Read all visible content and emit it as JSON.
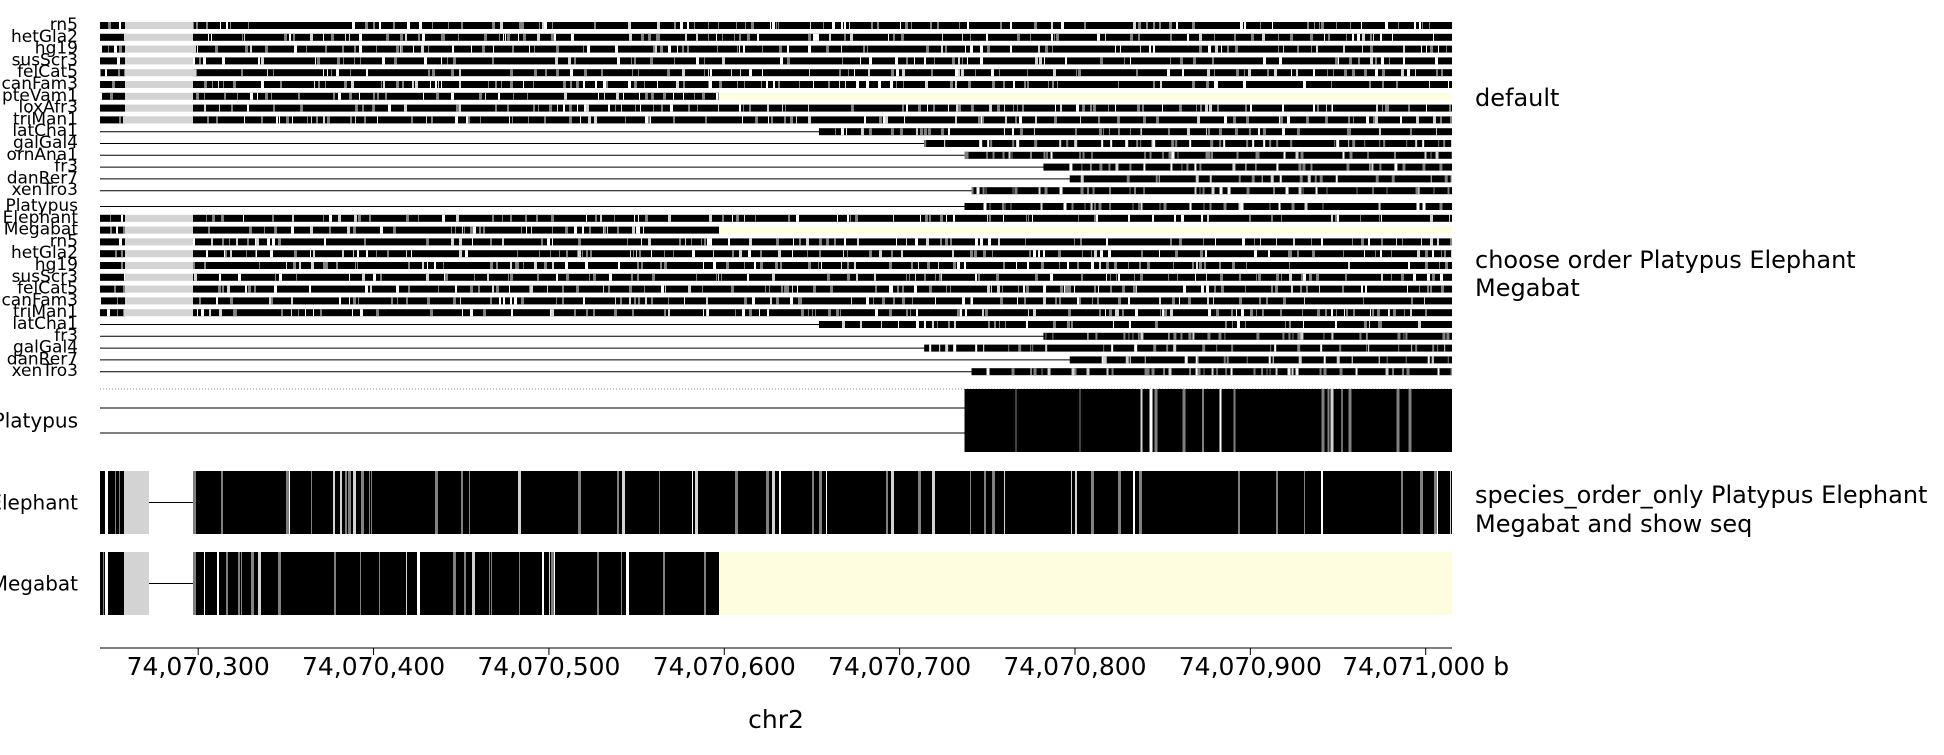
{
  "chart_data": {
    "type": "heatmap",
    "description_free": true,
    "x_range": [
      74070244,
      74071015
    ],
    "x_ticks": [
      74070300,
      74070400,
      74070500,
      74070600,
      74070700,
      74070800,
      74070900,
      74071000
    ],
    "x_tick_labels": [
      "74,070,300",
      "74,070,400",
      "74,070,500",
      "74,070,600",
      "74,070,700",
      "74,070,800",
      "74,070,900",
      "74,071,000 b"
    ],
    "xlabel": "chr2",
    "colors": {
      "aligned": "#000000",
      "mismatch": "#808080",
      "low": "#d3d3d3",
      "missing": "#fffde0",
      "gap_line": "#000000"
    },
    "panels": [
      {
        "title": "default",
        "rows": [
          {
            "label": "rn5",
            "pattern": "mm",
            "start": 74070244
          },
          {
            "label": "hetGla2",
            "pattern": "mm",
            "start": 74070244
          },
          {
            "label": "hg19",
            "pattern": "mm",
            "start": 74070244
          },
          {
            "label": "susScr3",
            "pattern": "mm",
            "start": 74070244
          },
          {
            "label": "felCat5",
            "pattern": "mm",
            "start": 74070244
          },
          {
            "label": "canFam3",
            "pattern": "mm",
            "start": 74070244
          },
          {
            "label": "pteVam1",
            "pattern": "mm",
            "start": 74070244,
            "missing_from": 74070597
          },
          {
            "label": "loxAfr3",
            "pattern": "mm",
            "start": 74070244
          },
          {
            "label": "triMan1",
            "pattern": "mm",
            "start": 74070244
          },
          {
            "label": "latCha1",
            "pattern": "mm",
            "start": 74070654
          },
          {
            "label": "galGal4",
            "pattern": "mm",
            "start": 74070714
          },
          {
            "label": "ornAna1",
            "pattern": "mm",
            "start": 74070737
          },
          {
            "label": "fr3",
            "pattern": "mm",
            "start": 74070782
          },
          {
            "label": "danRer7",
            "pattern": "mm",
            "start": 74070797
          },
          {
            "label": "xenTro3",
            "pattern": "mm",
            "start": 74070741
          }
        ]
      },
      {
        "title": "choose order Platypus Elephant Megabat",
        "rows": [
          {
            "label": "Platypus",
            "pattern": "mm",
            "start": 74070737
          },
          {
            "label": "Elephant",
            "pattern": "mm",
            "start": 74070244
          },
          {
            "label": "Megabat",
            "pattern": "mm",
            "start": 74070244,
            "missing_from": 74070597
          },
          {
            "label": "rn5",
            "pattern": "mm",
            "start": 74070244
          },
          {
            "label": "hetGla2",
            "pattern": "mm",
            "start": 74070244
          },
          {
            "label": "hg19",
            "pattern": "mm",
            "start": 74070244
          },
          {
            "label": "susScr3",
            "pattern": "mm",
            "start": 74070244
          },
          {
            "label": "felCat5",
            "pattern": "mm",
            "start": 74070244
          },
          {
            "label": "canFam3",
            "pattern": "mm",
            "start": 74070244
          },
          {
            "label": "triMan1",
            "pattern": "mm",
            "start": 74070244
          },
          {
            "label": "latCha1",
            "pattern": "mm",
            "start": 74070654
          },
          {
            "label": "fr3",
            "pattern": "mm",
            "start": 74070782
          },
          {
            "label": "galGal4",
            "pattern": "mm",
            "start": 74070714
          },
          {
            "label": "danRer7",
            "pattern": "mm",
            "start": 74070797
          },
          {
            "label": "xenTro3",
            "pattern": "mm",
            "start": 74070741
          }
        ]
      },
      {
        "title": "species_order_only Platypus Elephant Megabat and show seq",
        "rows": [
          {
            "label": "Platypus",
            "start": 74070737
          },
          {
            "label": "Elephant",
            "start": 74070244
          },
          {
            "label": "Megabat",
            "start": 74070244,
            "missing_from": 74070597
          }
        ]
      }
    ]
  }
}
